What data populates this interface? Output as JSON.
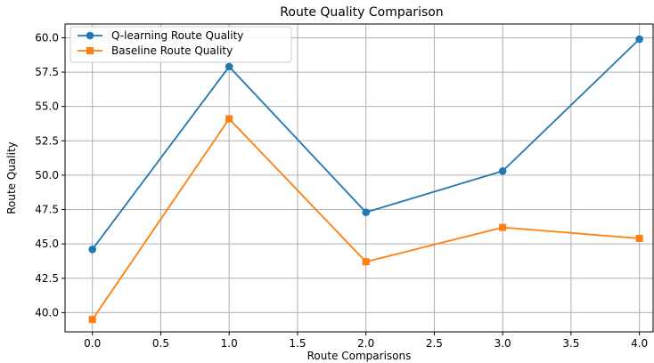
{
  "chart_data": {
    "type": "line",
    "title": "Route Quality Comparison",
    "xlabel": "Route Comparisons",
    "ylabel": "Route Quality",
    "x": [
      0,
      1,
      2,
      3,
      4
    ],
    "xlim": [
      -0.2,
      4.1
    ],
    "ylim": [
      38.6,
      61.0
    ],
    "xticks": [
      0.0,
      0.5,
      1.0,
      1.5,
      2.0,
      2.5,
      3.0,
      3.5,
      4.0
    ],
    "xtick_labels": [
      "0.0",
      "0.5",
      "1.0",
      "1.5",
      "2.0",
      "2.5",
      "3.0",
      "3.5",
      "4.0"
    ],
    "yticks": [
      40.0,
      42.5,
      45.0,
      47.5,
      50.0,
      52.5,
      55.0,
      57.5,
      60.0
    ],
    "ytick_labels": [
      "40.0",
      "42.5",
      "45.0",
      "47.5",
      "50.0",
      "52.5",
      "55.0",
      "57.5",
      "60.0"
    ],
    "grid": true,
    "legend_position": "upper-left",
    "series": [
      {
        "name": "Q-learning Route Quality",
        "values": [
          44.6,
          57.9,
          47.3,
          50.3,
          59.9
        ],
        "color": "#1f77b4",
        "marker": "circle"
      },
      {
        "name": "Baseline Route Quality",
        "values": [
          39.5,
          54.1,
          43.7,
          46.2,
          45.4
        ],
        "color": "#ff7f0e",
        "marker": "square"
      }
    ]
  }
}
